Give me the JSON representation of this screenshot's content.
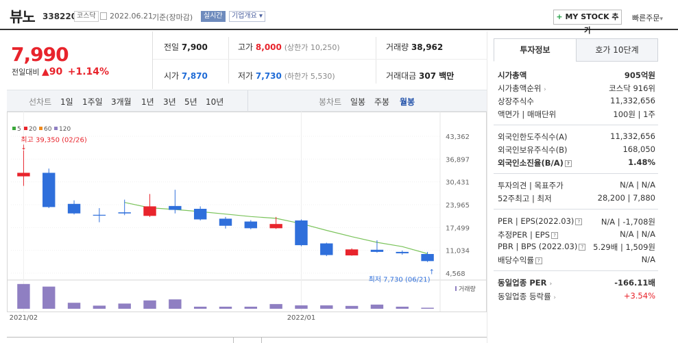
{
  "header": {
    "name": "뷰노",
    "code": "338220",
    "market": "코스닥",
    "date": "2022.06.21",
    "basis": "기준(장마감)",
    "realtime": "실시간",
    "company_info": "기업개요",
    "company_info_arrow": "▾",
    "mystock_plus": "+",
    "mystock": "MY STOCK 추가",
    "quick_order": "빠른주문",
    "quick_order_arrow": "▾"
  },
  "price": {
    "current": "7,990",
    "vs_label": "전일대비",
    "change_arrow": "▲",
    "change": "90",
    "change_pct": "+1.14%"
  },
  "stats": {
    "prev_label": "전일",
    "prev": "7,900",
    "high_label": "고가",
    "high": "8,000",
    "upper_limit": "(상한가 10,250)",
    "volume_label": "거래량",
    "volume": "38,962",
    "open_label": "시가",
    "open": "7,870",
    "low_label": "저가",
    "low": "7,730",
    "lower_limit": "(하한가 5,530)",
    "amount_label": "거래대금",
    "amount": "307 백만"
  },
  "chart_tabs": {
    "line_label": "선차트",
    "line_items": [
      "1일",
      "1주일",
      "3개월",
      "1년",
      "3년",
      "5년",
      "10년"
    ],
    "candle_label": "봉차트",
    "candle_items": [
      "일봉",
      "주봉",
      "월봉"
    ],
    "candle_selected": "월봉"
  },
  "right_panel": {
    "tabs": [
      "투자정보",
      "호가 10단계"
    ],
    "rows": [
      {
        "label": "시가총액",
        "value": "905억원"
      },
      {
        "label": "시가총액순위",
        "value": "코스닥 916위"
      },
      {
        "label": "상장주식수",
        "value": "11,332,656"
      },
      {
        "label": "액면가 | 매매단위",
        "value": "100원 | 1주"
      },
      {
        "label": "외국인한도주식수(A)",
        "value": "11,332,656"
      },
      {
        "label": "외국인보유주식수(B)",
        "value": "168,050"
      },
      {
        "label": "외국인소진율(B/A)",
        "value": "1.48%"
      },
      {
        "label": "투자의견 | 목표주가",
        "value": "N/A | N/A"
      },
      {
        "label": "52주최고 | 최저",
        "value": "28,200 | 7,880"
      },
      {
        "label": "PER | EPS(2022.03)",
        "value": "N/A | -1,708원"
      },
      {
        "label": "추정PER | EPS",
        "value": "N/A | N/A"
      },
      {
        "label": "PBR | BPS (2022.03)",
        "value": "5.29배 | 1,509원"
      },
      {
        "label": "배당수익률",
        "value": "N/A"
      },
      {
        "label": "동일업종 PER",
        "value": "-166.11배"
      },
      {
        "label": "동일업종 등락률",
        "value": "+3.54%"
      }
    ],
    "rank_arrow": "›",
    "hint_mark": "?"
  },
  "colors": {
    "up": "#e8242c",
    "down": "#2f6fdb",
    "ma": "#7ac35a",
    "volume": "#8f7fc2"
  },
  "chart_data": {
    "type": "candlestick",
    "legend": [
      {
        "name": "5",
        "color": "#3aa73a"
      },
      {
        "name": "20",
        "color": "#e8242c"
      },
      {
        "name": "60",
        "color": "#f08a1c"
      },
      {
        "name": "120",
        "color": "#8f7fc2"
      }
    ],
    "y_ticks": [
      43362,
      36897,
      30431,
      23965,
      17499,
      11034,
      4568
    ],
    "ylim": [
      4568,
      43362
    ],
    "x_tick_labels": [
      {
        "index": 0,
        "label": "2021/02"
      },
      {
        "index": 11,
        "label": "2022/01"
      }
    ],
    "max_annotation": {
      "label": "최고 39,350 (02/26)",
      "value": 39350,
      "index": 0,
      "arrow": "↓"
    },
    "min_annotation": {
      "label": "최저 7,730 (06/21)",
      "value": 7730,
      "index": 16,
      "arrow": "↑"
    },
    "volume_label": "거래량",
    "candles": [
      {
        "o": 32000,
        "c": 33000,
        "h": 39350,
        "l": 29300
      },
      {
        "o": 33000,
        "c": 23300,
        "h": 34200,
        "l": 23000
      },
      {
        "o": 24200,
        "c": 21500,
        "h": 25200,
        "l": 21200
      },
      {
        "o": 21100,
        "c": 21100,
        "h": 23000,
        "l": 19000
      },
      {
        "o": 21800,
        "c": 21500,
        "h": 25400,
        "l": 21000
      },
      {
        "o": 20800,
        "c": 23500,
        "h": 27000,
        "l": 20500
      },
      {
        "o": 23600,
        "c": 22500,
        "h": 28200,
        "l": 21500
      },
      {
        "o": 22800,
        "c": 19800,
        "h": 23500,
        "l": 19500
      },
      {
        "o": 20000,
        "c": 18000,
        "h": 20500,
        "l": 17200
      },
      {
        "o": 19200,
        "c": 17300,
        "h": 19600,
        "l": 17000
      },
      {
        "o": 17300,
        "c": 18500,
        "h": 20500,
        "l": 17100
      },
      {
        "o": 19500,
        "c": 12500,
        "h": 19800,
        "l": 12200
      },
      {
        "o": 13000,
        "c": 9700,
        "h": 13200,
        "l": 9400
      },
      {
        "o": 9600,
        "c": 11300,
        "h": 11600,
        "l": 9500
      },
      {
        "o": 11200,
        "c": 10600,
        "h": 13900,
        "l": 10400
      },
      {
        "o": 10600,
        "c": 10200,
        "h": 11000,
        "l": 9800
      },
      {
        "o": 10000,
        "c": 7990,
        "h": 10600,
        "l": 7730
      }
    ],
    "ma": [
      null,
      null,
      null,
      null,
      24600,
      23100,
      22600,
      22000,
      21300,
      20600,
      20100,
      18600,
      16700,
      14900,
      13300,
      12100,
      10100
    ],
    "volumes": [
      9.5,
      8.5,
      2.3,
      1.2,
      2.0,
      3.2,
      3.6,
      0.8,
      0.8,
      0.8,
      1.8,
      1.3,
      1.3,
      1.1,
      1.6,
      0.8,
      0.4
    ]
  }
}
